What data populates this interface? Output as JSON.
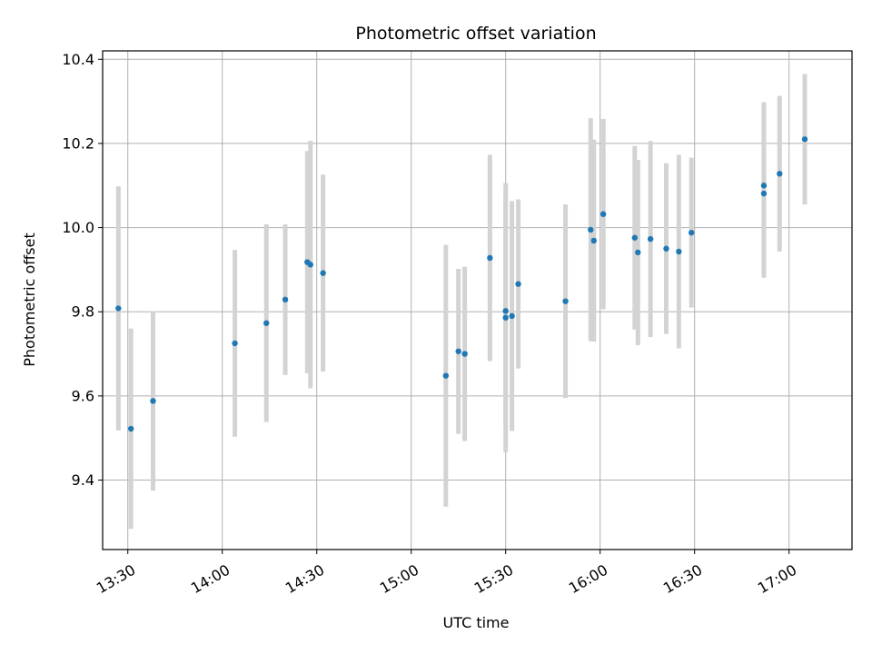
{
  "chart_data": {
    "type": "scatter",
    "title": "Photometric offset variation",
    "xlabel": "UTC time",
    "ylabel": "Photometric offset",
    "x_axis_type": "time",
    "xlim": [
      "13:22",
      "17:20"
    ],
    "ylim": [
      9.235,
      10.42
    ],
    "grid": true,
    "x_ticks": [
      "13:30",
      "14:00",
      "14:30",
      "15:00",
      "15:30",
      "16:00",
      "16:30",
      "17:00"
    ],
    "y_ticks": [
      9.4,
      9.6,
      9.8,
      10.0,
      10.2,
      10.4
    ],
    "y_tick_labels": [
      "9.4",
      "9.6",
      "9.8",
      "10.0",
      "10.2",
      "10.4"
    ],
    "colors": {
      "points": "#1f77b4",
      "errorbars": "#d3d3d3",
      "grid": "#b0b0b0"
    },
    "points": [
      {
        "time": "13:27",
        "y": 9.808,
        "err": 0.29
      },
      {
        "time": "13:31",
        "y": 9.522,
        "err": 0.238
      },
      {
        "time": "13:38",
        "y": 9.588,
        "err": 0.213
      },
      {
        "time": "14:04",
        "y": 9.725,
        "err": 0.222
      },
      {
        "time": "14:14",
        "y": 9.773,
        "err": 0.235
      },
      {
        "time": "14:20",
        "y": 9.829,
        "err": 0.179
      },
      {
        "time": "14:27",
        "y": 9.918,
        "err": 0.264
      },
      {
        "time": "14:28",
        "y": 9.912,
        "err": 0.294
      },
      {
        "time": "14:32",
        "y": 9.892,
        "err": 0.234
      },
      {
        "time": "15:11",
        "y": 9.648,
        "err": 0.311
      },
      {
        "time": "15:15",
        "y": 9.706,
        "err": 0.196
      },
      {
        "time": "15:17",
        "y": 9.7,
        "err": 0.207
      },
      {
        "time": "15:25",
        "y": 9.928,
        "err": 0.245
      },
      {
        "time": "15:30",
        "y": 9.786,
        "err": 0.32
      },
      {
        "time": "15:30",
        "y": 9.802,
        "err": 0.273
      },
      {
        "time": "15:32",
        "y": 9.79,
        "err": 0.273
      },
      {
        "time": "15:34",
        "y": 9.866,
        "err": 0.201
      },
      {
        "time": "15:49",
        "y": 9.825,
        "err": 0.23
      },
      {
        "time": "15:57",
        "y": 9.995,
        "err": 0.265
      },
      {
        "time": "15:58",
        "y": 9.969,
        "err": 0.24
      },
      {
        "time": "16:01",
        "y": 10.032,
        "err": 0.226
      },
      {
        "time": "16:11",
        "y": 9.976,
        "err": 0.218
      },
      {
        "time": "16:12",
        "y": 9.941,
        "err": 0.22
      },
      {
        "time": "16:16",
        "y": 9.973,
        "err": 0.233
      },
      {
        "time": "16:21",
        "y": 9.95,
        "err": 0.203
      },
      {
        "time": "16:25",
        "y": 9.943,
        "err": 0.23
      },
      {
        "time": "16:29",
        "y": 9.988,
        "err": 0.178
      },
      {
        "time": "16:52",
        "y": 10.1,
        "err": 0.198
      },
      {
        "time": "16:52",
        "y": 10.081,
        "err": 0.2
      },
      {
        "time": "16:57",
        "y": 10.128,
        "err": 0.185
      },
      {
        "time": "17:05",
        "y": 10.21,
        "err": 0.155
      }
    ]
  }
}
